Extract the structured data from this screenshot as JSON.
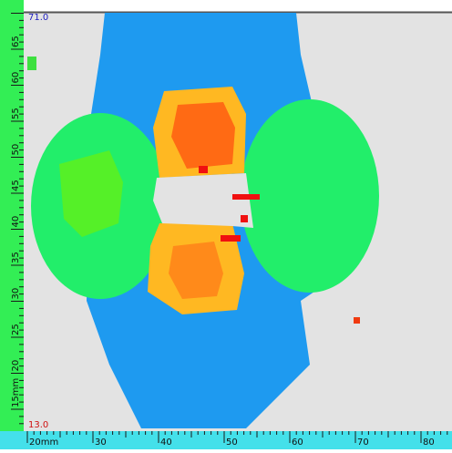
{
  "scale": {
    "max_label": "71.0",
    "min_label": "13.0"
  },
  "x_ruler": [
    "20mm",
    "30",
    "40",
    "50",
    "60",
    "70",
    "80"
  ],
  "y_ruler": [
    "15mm",
    "20",
    "25",
    "30",
    "35",
    "40",
    "45",
    "50",
    "55",
    "60",
    "65"
  ]
}
